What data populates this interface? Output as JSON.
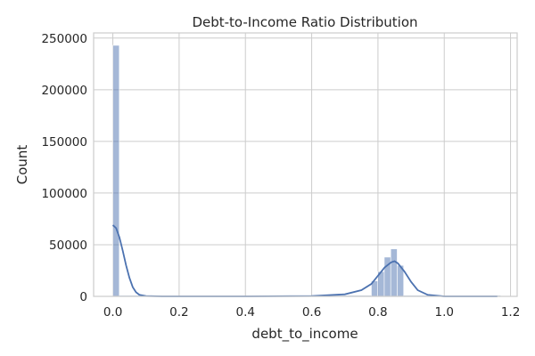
{
  "chart_data": {
    "type": "bar",
    "title": "Debt-to-Income Ratio Distribution",
    "xlabel": "debt_to_income",
    "ylabel": "Count",
    "xlim": [
      -0.058,
      1.22
    ],
    "ylim": [
      0,
      255000
    ],
    "xticks": [
      0.0,
      0.2,
      0.4,
      0.6,
      0.8,
      1.0,
      1.2
    ],
    "xtick_labels": [
      "0.0",
      "0.2",
      "0.4",
      "0.6",
      "0.8",
      "1.0",
      "1.2"
    ],
    "yticks": [
      0,
      50000,
      100000,
      150000,
      200000,
      250000
    ],
    "ytick_labels": [
      "0",
      "50000",
      "100000",
      "150000",
      "200000",
      "250000"
    ],
    "grid": true,
    "bar_color": "#4c72b0",
    "bar_alpha": 0.5,
    "kde_color": "#4c72b0",
    "bins": {
      "x0": 0.0,
      "width": 0.0195,
      "counts": [
        243000,
        0,
        0,
        0,
        0,
        0,
        0,
        0,
        0,
        0,
        0,
        0,
        0,
        0,
        0,
        0,
        0,
        0,
        0,
        0,
        0,
        0,
        0,
        0,
        0,
        0,
        0,
        0,
        0,
        0,
        0,
        0,
        0,
        0,
        0,
        0,
        0,
        0,
        0,
        0,
        15000,
        24000,
        38000,
        46000,
        30000,
        0,
        0,
        0,
        0,
        0,
        0,
        0,
        0,
        0,
        0,
        0,
        0,
        0,
        0,
        0
      ]
    },
    "kde": {
      "x": [
        0.0,
        0.01,
        0.02,
        0.03,
        0.04,
        0.05,
        0.06,
        0.07,
        0.08,
        0.1,
        0.15,
        0.2,
        0.4,
        0.6,
        0.7,
        0.75,
        0.78,
        0.8,
        0.82,
        0.84,
        0.85,
        0.86,
        0.88,
        0.9,
        0.92,
        0.95,
        1.0,
        1.16
      ],
      "y": [
        69000,
        66000,
        57000,
        44000,
        30000,
        18000,
        9000,
        4000,
        1500,
        300,
        0,
        0,
        0,
        300,
        2000,
        6000,
        12000,
        20000,
        28000,
        33000,
        34000,
        32000,
        24000,
        14000,
        6000,
        1500,
        0,
        0
      ]
    }
  }
}
